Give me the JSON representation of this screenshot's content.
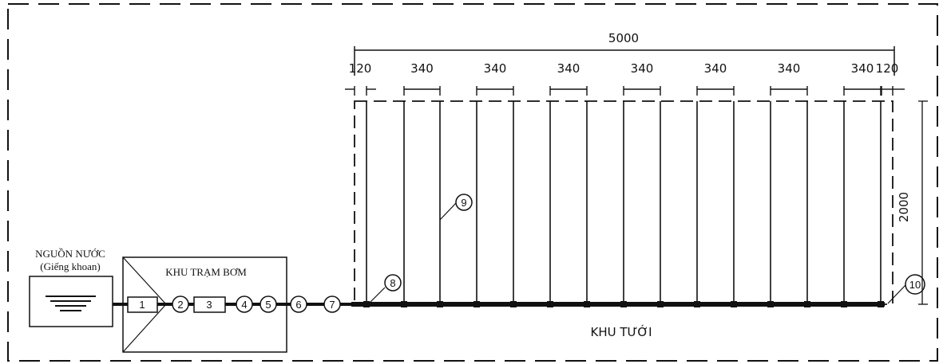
{
  "source": {
    "title_line1": "NGUỒN NƯỚC",
    "title_line2": "(Giếng khoan)"
  },
  "pump_station": {
    "label": "KHU TRẠM BƠM",
    "components": [
      "1",
      "2",
      "3",
      "4",
      "5"
    ]
  },
  "pipeline_markers": [
    "6",
    "7"
  ],
  "irrigation": {
    "label": "KHU TƯỚI",
    "callouts": {
      "lateral_pipe": "9",
      "joint": "8",
      "end": "10"
    },
    "total_width": "5000",
    "edge_spacing_left": "120",
    "edge_spacing_right": "120",
    "pair_spacing": [
      "340",
      "340",
      "340",
      "340",
      "340",
      "340",
      "340"
    ],
    "height": "2000"
  },
  "colors": {
    "ink": "#111111",
    "paper": "#ffffff"
  }
}
